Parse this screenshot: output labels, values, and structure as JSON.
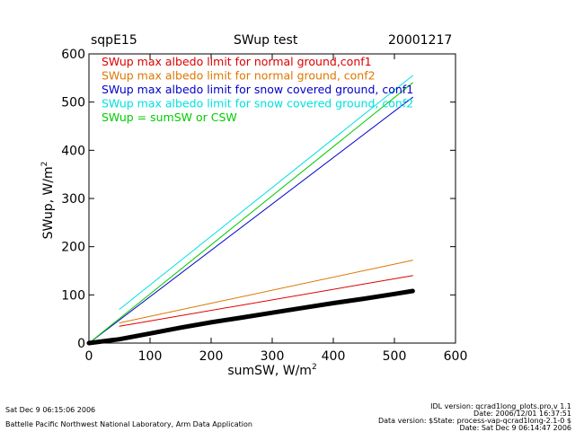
{
  "header": {
    "site": "sqpE15",
    "title": "SWup test",
    "date": "20001217"
  },
  "footer": {
    "left_date": "Sat Dec  9 06:15:06 2006",
    "left_org": "Battelle Pacific Northwest National Laboratory, Arm Data Application",
    "right_1": "IDL version: qcrad1long_plots.pro,v 1.1",
    "right_2": "Date: 2006/12/01 16:37:51",
    "right_3": "Data version: $State: process-vap-qcrad1long-2.1-0 $",
    "right_4": "Date: Sat Dec  9 06:14:47 2006"
  },
  "chart_data": {
    "type": "line",
    "xlabel": "sumSW, W/m",
    "ylabel": "SWup, W/m",
    "label_superscript": "2",
    "xlim": [
      0,
      600
    ],
    "ylim": [
      0,
      600
    ],
    "xticks": [
      0,
      100,
      200,
      300,
      400,
      500,
      600
    ],
    "yticks": [
      0,
      100,
      200,
      300,
      400,
      500,
      600
    ],
    "grid": false,
    "legend_position": "top-left",
    "series": [
      {
        "name": "SWup max albedo limit for normal ground,conf1",
        "color": "#dd0000",
        "x": [
          50,
          530
        ],
        "y": [
          35,
          140
        ]
      },
      {
        "name": "SWup max albedo limit for normal ground, conf2",
        "color": "#dd7700",
        "x": [
          50,
          530
        ],
        "y": [
          42,
          172
        ]
      },
      {
        "name": "SWup max albedo limit for snow covered ground, conf1",
        "color": "#0000cc",
        "x": [
          0,
          530
        ],
        "y": [
          0,
          510
        ]
      },
      {
        "name": "SWup max albedo limit for snow covered ground, conf2",
        "color": "#00e0e0",
        "x": [
          50,
          530
        ],
        "y": [
          70,
          555
        ]
      },
      {
        "name": "SWup = sumSW or CSW",
        "color": "#00cc00",
        "x": [
          0,
          530
        ],
        "y": [
          0,
          540
        ]
      },
      {
        "name": "",
        "color": "#000000",
        "x": [
          0,
          50,
          100,
          150,
          200,
          250,
          300,
          350,
          400,
          450,
          500,
          530
        ],
        "y": [
          0,
          8,
          20,
          32,
          43,
          53,
          63,
          73,
          83,
          92,
          102,
          108
        ]
      }
    ]
  }
}
